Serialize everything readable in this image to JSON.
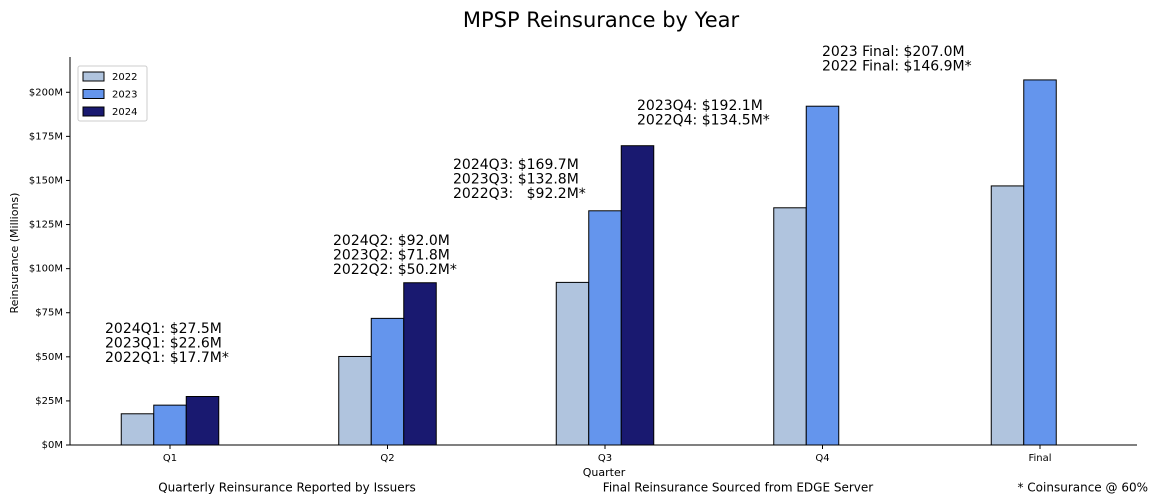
{
  "chart_data": {
    "type": "bar",
    "title": "MPSP Reinsurance by Year",
    "x_label": "Quarter",
    "y_label": "Reinsurance (Millions)",
    "categories": [
      "Q1",
      "Q2",
      "Q3",
      "Q4",
      "Final"
    ],
    "series": [
      {
        "name": "2022",
        "color": "#b0c4de",
        "values": [
          17.7,
          50.2,
          92.2,
          134.5,
          146.9
        ]
      },
      {
        "name": "2023",
        "color": "#6495ed",
        "values": [
          22.6,
          71.8,
          132.8,
          192.1,
          207.0
        ]
      },
      {
        "name": "2024",
        "color": "#191970",
        "values": [
          27.5,
          92.0,
          169.7,
          0,
          0
        ]
      }
    ],
    "ylim": [
      0,
      220
    ],
    "yticks": [
      {
        "value": 0,
        "label": "$0M"
      },
      {
        "value": 25,
        "label": "$25M"
      },
      {
        "value": 50,
        "label": "$50M"
      },
      {
        "value": 75,
        "label": "$75M"
      },
      {
        "value": 100,
        "label": "$100M"
      },
      {
        "value": 125,
        "label": "$125M"
      },
      {
        "value": 150,
        "label": "$150M"
      },
      {
        "value": 175,
        "label": "$175M"
      },
      {
        "value": 200,
        "label": "$200M"
      }
    ],
    "legend": "upper left",
    "annotations": [
      [
        "2024Q1: $27.5M",
        "2023Q1: $22.6M",
        "2022Q1: $17.7M*"
      ],
      [
        "2024Q2: $92.0M",
        "2023Q2: $71.8M",
        "2022Q2: $50.2M*"
      ],
      [
        "2024Q3: $169.7M",
        "2023Q3: $132.8M",
        "2022Q3:   $92.2M*"
      ],
      [
        "2023Q4: $192.1M",
        "2022Q4: $134.5M*"
      ],
      [
        "2023 Final: $207.0M",
        "2022 Final: $146.9M*"
      ]
    ],
    "footnotes": [
      "Quarterly Reinsurance Reported by Issuers",
      "Final Reinsurance Sourced from EDGE Server",
      "* Coinsurance @ 60%"
    ]
  }
}
